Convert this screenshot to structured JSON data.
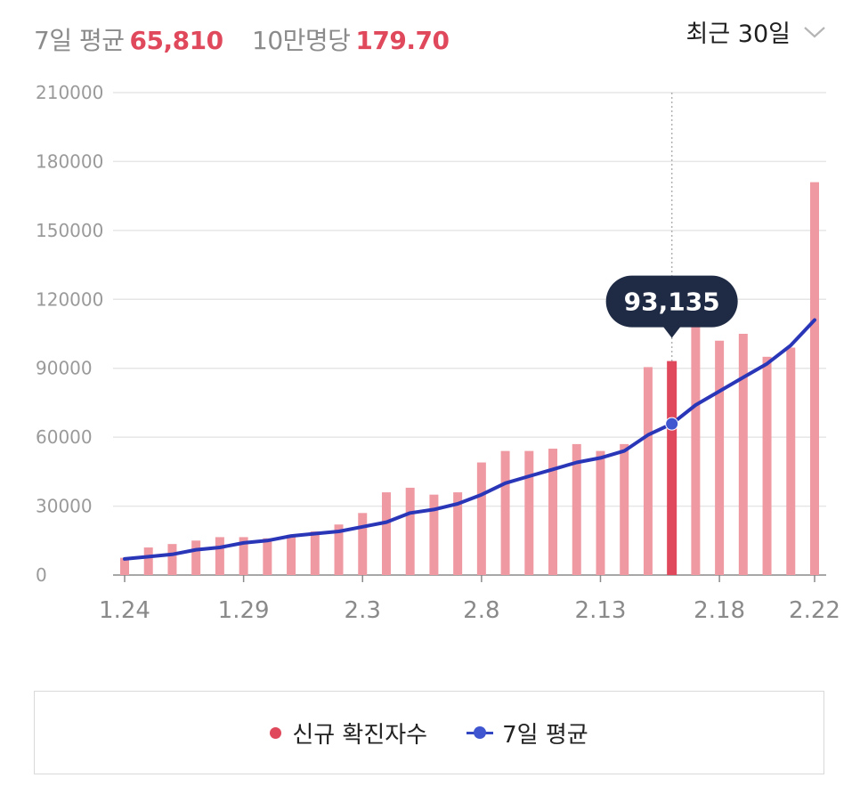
{
  "header": {
    "avg_label": "7일 평균",
    "avg_value": "65,810",
    "per_label": "10만명당",
    "per_value": "179.70",
    "period_label": "최근 30일"
  },
  "colors": {
    "bar": "#ef9aa3",
    "bar_selected": "#e0485c",
    "line": "#2a36b8",
    "marker": "#3f56d0",
    "tooltip_bg": "#1f2a44",
    "grid": "#e6e6e6",
    "axis_text": "#9a9a9a"
  },
  "tooltip": {
    "text": "93,135"
  },
  "legend": {
    "cases_label": "신규 확진자수",
    "avg_label": "7일 평균"
  },
  "chart_data": {
    "type": "bar",
    "ylim": [
      0,
      210000
    ],
    "y_ticks": [
      "0",
      "30000",
      "60000",
      "90000",
      "120000",
      "150000",
      "180000",
      "210000"
    ],
    "x_tick_labels": [
      "1.24",
      "1.29",
      "2.3",
      "2.8",
      "2.13",
      "2.18",
      "2.22"
    ],
    "x_tick_indices": [
      0,
      5,
      10,
      15,
      20,
      25,
      29
    ],
    "categories": [
      "1.24",
      "1.25",
      "1.26",
      "1.27",
      "1.28",
      "1.29",
      "1.30",
      "1.31",
      "2.1",
      "2.2",
      "2.3",
      "2.4",
      "2.5",
      "2.6",
      "2.7",
      "2.8",
      "2.9",
      "2.10",
      "2.11",
      "2.12",
      "2.13",
      "2.14",
      "2.15",
      "2.16",
      "2.17",
      "2.18",
      "2.19",
      "2.20",
      "2.21",
      "2.22"
    ],
    "selected_index": 23,
    "series": [
      {
        "name": "신규 확진자수",
        "type": "bar",
        "values": [
          7500,
          12000,
          13500,
          15000,
          16500,
          16500,
          16000,
          17500,
          19000,
          22000,
          27000,
          36000,
          38000,
          35000,
          36000,
          49000,
          54000,
          54000,
          55000,
          57000,
          54000,
          57000,
          90500,
          93135,
          109000,
          102000,
          105000,
          95000,
          99000,
          171000
        ]
      },
      {
        "name": "7일 평균",
        "type": "line",
        "values": [
          7000,
          8000,
          9000,
          11000,
          12000,
          14000,
          15000,
          17000,
          18000,
          19000,
          21000,
          23000,
          27000,
          28500,
          31000,
          35000,
          40000,
          43000,
          46000,
          49000,
          51000,
          54000,
          61000,
          65810,
          74000,
          80000,
          86000,
          92000,
          100000,
          111000
        ]
      }
    ]
  }
}
